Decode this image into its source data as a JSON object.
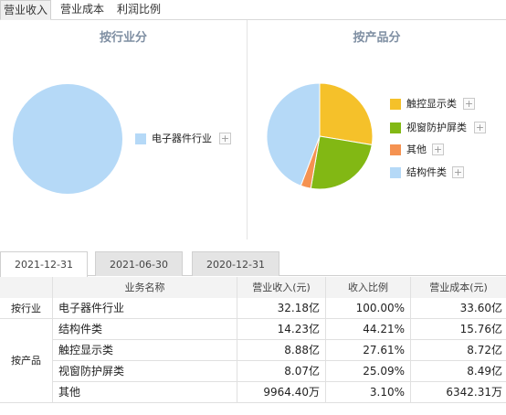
{
  "tabs": [
    "营业收入",
    "营业成本",
    "利润比例"
  ],
  "active_tab": 0,
  "panels": {
    "industry_title": "按行业分",
    "product_title": "按产品分"
  },
  "chart_data": [
    {
      "type": "pie",
      "title": "按行业分",
      "slices": [
        {
          "label": "电子器件行业",
          "value": 100.0,
          "color": "#b5d9f7"
        }
      ]
    },
    {
      "type": "pie",
      "title": "按产品分",
      "slices": [
        {
          "label": "触控显示类",
          "value": 27.61,
          "color": "#f5c12a"
        },
        {
          "label": "视窗防护屏类",
          "value": 25.09,
          "color": "#82b814"
        },
        {
          "label": "其他",
          "value": 3.1,
          "color": "#f59251"
        },
        {
          "label": "结构件类",
          "value": 44.21,
          "color": "#b5d9f7"
        }
      ]
    }
  ],
  "legend_plus": "+",
  "date_tabs": [
    "2021-12-31",
    "2021-06-30",
    "2020-12-31"
  ],
  "active_date": 0,
  "table": {
    "headers": {
      "name": "业务名称",
      "revenue": "营业收入(元)",
      "ratio": "收入比例",
      "cost": "营业成本(元)"
    },
    "groups": [
      "按行业",
      "按产品"
    ],
    "rows": [
      {
        "name": "电子器件行业",
        "revenue": "32.18亿",
        "ratio": "100.00%",
        "cost": "33.60亿"
      },
      {
        "name": "结构件类",
        "revenue": "14.23亿",
        "ratio": "44.21%",
        "cost": "15.76亿"
      },
      {
        "name": "触控显示类",
        "revenue": "8.88亿",
        "ratio": "27.61%",
        "cost": "8.72亿"
      },
      {
        "name": "视窗防护屏类",
        "revenue": "8.07亿",
        "ratio": "25.09%",
        "cost": "8.49亿"
      },
      {
        "name": "其他",
        "revenue": "9964.40万",
        "ratio": "3.10%",
        "cost": "6342.31万"
      }
    ]
  }
}
